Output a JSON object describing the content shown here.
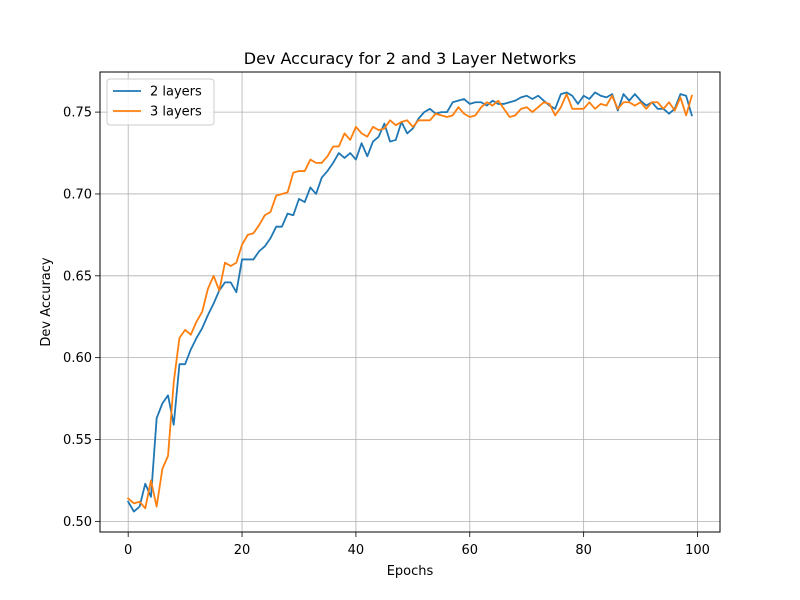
{
  "chart_data": {
    "type": "line",
    "title": "Dev Accuracy for 2 and 3 Layer Networks",
    "xlabel": "Epochs",
    "ylabel": "Dev Accuracy",
    "xlim": [
      -4.95,
      103.95
    ],
    "ylim": [
      0.4935,
      0.7745
    ],
    "xticks": [
      0,
      20,
      40,
      60,
      80,
      100
    ],
    "yticks": [
      0.5,
      0.55,
      0.6,
      0.65,
      0.7,
      0.75
    ],
    "ytick_labels": [
      "0.50",
      "0.55",
      "0.60",
      "0.65",
      "0.70",
      "0.75"
    ],
    "grid": true,
    "legend": "upper left",
    "series": [
      {
        "name": "2 layers",
        "color": "#1f77b4",
        "values": [
          0.512,
          0.506,
          0.509,
          0.523,
          0.515,
          0.563,
          0.572,
          0.577,
          0.559,
          0.596,
          0.596,
          0.605,
          0.612,
          0.618,
          0.626,
          0.633,
          0.641,
          0.646,
          0.646,
          0.64,
          0.66,
          0.66,
          0.66,
          0.665,
          0.668,
          0.673,
          0.68,
          0.68,
          0.688,
          0.687,
          0.697,
          0.695,
          0.704,
          0.7,
          0.71,
          0.714,
          0.719,
          0.725,
          0.722,
          0.725,
          0.721,
          0.731,
          0.723,
          0.732,
          0.735,
          0.743,
          0.732,
          0.733,
          0.744,
          0.737,
          0.74,
          0.746,
          0.75,
          0.752,
          0.749,
          0.75,
          0.75,
          0.756,
          0.757,
          0.758,
          0.755,
          0.756,
          0.756,
          0.754,
          0.757,
          0.755,
          0.755,
          0.756,
          0.757,
          0.759,
          0.76,
          0.758,
          0.76,
          0.757,
          0.754,
          0.752,
          0.761,
          0.762,
          0.76,
          0.755,
          0.76,
          0.758,
          0.762,
          0.76,
          0.759,
          0.761,
          0.751,
          0.761,
          0.757,
          0.761,
          0.757,
          0.754,
          0.756,
          0.752,
          0.752,
          0.749,
          0.752,
          0.761,
          0.76,
          0.748
        ]
      },
      {
        "name": "3 layers",
        "color": "#ff7f0e",
        "values": [
          0.514,
          0.511,
          0.512,
          0.508,
          0.525,
          0.509,
          0.532,
          0.54,
          0.585,
          0.612,
          0.617,
          0.614,
          0.622,
          0.628,
          0.642,
          0.65,
          0.641,
          0.658,
          0.656,
          0.658,
          0.669,
          0.675,
          0.676,
          0.681,
          0.687,
          0.689,
          0.699,
          0.7,
          0.701,
          0.713,
          0.714,
          0.714,
          0.721,
          0.719,
          0.719,
          0.723,
          0.729,
          0.729,
          0.737,
          0.733,
          0.741,
          0.737,
          0.735,
          0.741,
          0.739,
          0.74,
          0.745,
          0.742,
          0.744,
          0.745,
          0.741,
          0.745,
          0.745,
          0.745,
          0.749,
          0.748,
          0.747,
          0.748,
          0.753,
          0.749,
          0.747,
          0.748,
          0.753,
          0.756,
          0.754,
          0.757,
          0.752,
          0.747,
          0.748,
          0.752,
          0.753,
          0.75,
          0.753,
          0.756,
          0.755,
          0.748,
          0.753,
          0.761,
          0.752,
          0.752,
          0.752,
          0.756,
          0.752,
          0.755,
          0.754,
          0.76,
          0.752,
          0.756,
          0.756,
          0.754,
          0.756,
          0.752,
          0.756,
          0.756,
          0.752,
          0.756,
          0.751,
          0.759,
          0.748,
          0.76
        ]
      }
    ]
  }
}
